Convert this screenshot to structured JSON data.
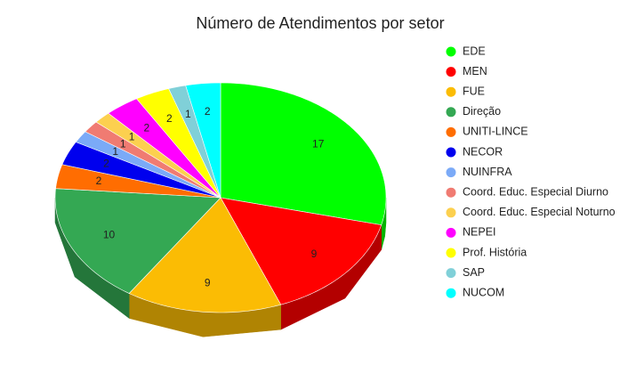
{
  "chart_data": {
    "type": "pie3d",
    "title": "Número de Atendimentos por setor",
    "categories": [
      "EDE",
      "MEN",
      "FUE",
      "Direção",
      "UNITI-LINCE",
      "NECOR",
      "NUINFRA",
      "Coord. Educ. Especial Diurno",
      "Coord. Educ. Especial Noturno",
      "NEPEI",
      "Prof. História",
      "SAP",
      "NUCOM"
    ],
    "values": [
      17,
      9,
      9,
      10,
      2,
      2,
      1,
      1,
      1,
      2,
      2,
      1,
      2
    ],
    "colors": [
      "#00ff00",
      "#ff0000",
      "#fbbc04",
      "#34a853",
      "#ff6d01",
      "#0000ee",
      "#7baaf7",
      "#f07b72",
      "#fcd04f",
      "#ff00ff",
      "#ffff00",
      "#80d0d8",
      "#00ffff"
    ],
    "legend": "right"
  }
}
